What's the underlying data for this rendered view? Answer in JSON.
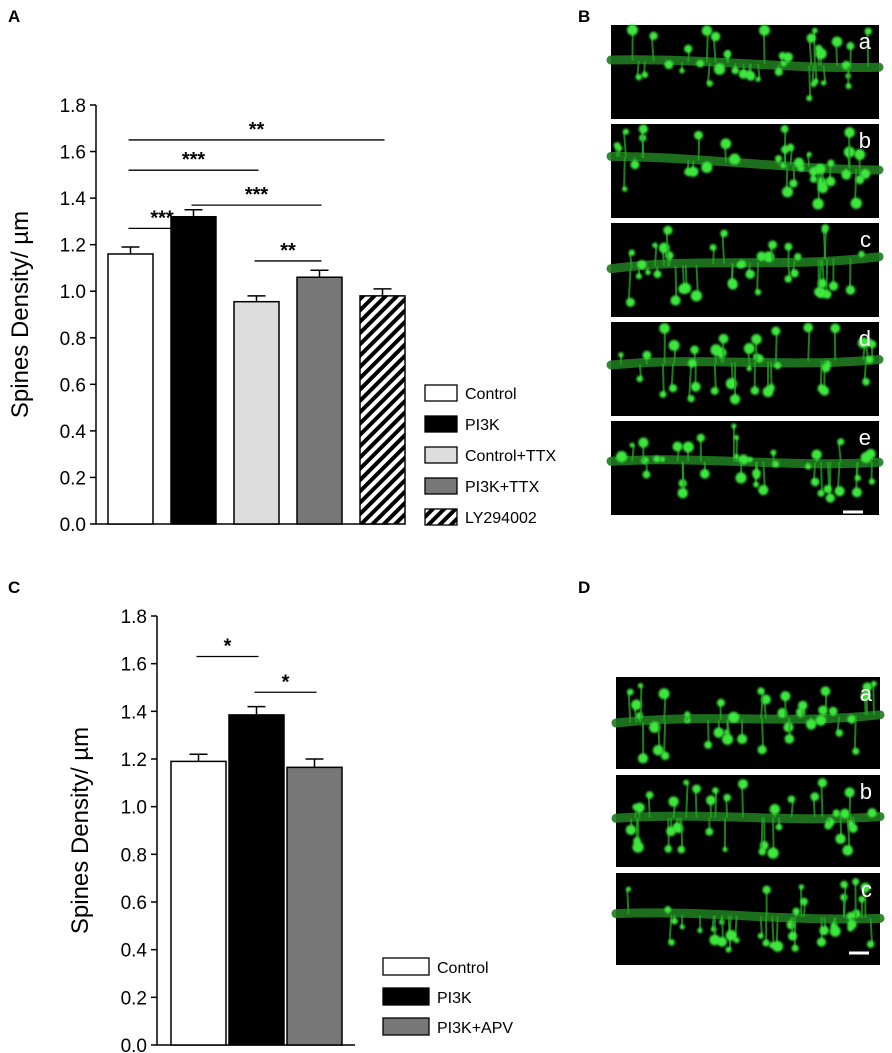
{
  "panels": [
    {
      "letter": "A"
    },
    {
      "letter": "B"
    },
    {
      "letter": "C"
    },
    {
      "letter": "D"
    }
  ],
  "chart_data": [
    {
      "panel": "A",
      "type": "bar",
      "ylabel": "Spines Density/ µm",
      "ylim": [
        0,
        1.8
      ],
      "yticks": [
        "0.0",
        "0.2",
        "0.4",
        "0.6",
        "0.8",
        "1.0",
        "1.2",
        "1.4",
        "1.6",
        "1.8"
      ],
      "categories": [
        "Control",
        "PI3K",
        "Control+TTX",
        "PI3K+TTX",
        "LY294002"
      ],
      "values": [
        1.16,
        1.32,
        0.955,
        1.06,
        0.98
      ],
      "errors": [
        0.03,
        0.03,
        0.025,
        0.03,
        0.03
      ],
      "fills": [
        "#ffffff",
        "#000000",
        "#dddddd",
        "#777777",
        "hatch"
      ],
      "legend": [
        "Control",
        "PI3K",
        "Control+TTX",
        "PI3K+TTX",
        "LY294002"
      ],
      "legend_position": "right",
      "significance": [
        {
          "from": 0,
          "to": 1,
          "y": 1.27,
          "label": "***"
        },
        {
          "from": 0,
          "to": 2,
          "y": 1.52,
          "label": "***"
        },
        {
          "from": 0,
          "to": 4,
          "y": 1.65,
          "label": "**"
        },
        {
          "from": 1,
          "to": 3,
          "y": 1.37,
          "label": "***"
        },
        {
          "from": 2,
          "to": 3,
          "y": 1.13,
          "label": "**"
        }
      ]
    },
    {
      "panel": "C",
      "type": "bar",
      "ylabel": "Spines Density/ µm",
      "ylim": [
        0,
        1.8
      ],
      "yticks": [
        "0.0",
        "0.2",
        "0.4",
        "0.6",
        "0.8",
        "1.0",
        "1.2",
        "1.4",
        "1.6",
        "1.8"
      ],
      "categories": [
        "Control",
        "PI3K",
        "PI3K+APV"
      ],
      "values": [
        1.19,
        1.385,
        1.165
      ],
      "errors": [
        0.03,
        0.035,
        0.035
      ],
      "fills": [
        "#ffffff",
        "#000000",
        "#777777"
      ],
      "legend": [
        "Control",
        "PI3K",
        "PI3K+APV"
      ],
      "legend_position": "right",
      "significance": [
        {
          "from": 0,
          "to": 1,
          "y": 1.63,
          "label": "*"
        },
        {
          "from": 1,
          "to": 2,
          "y": 1.48,
          "label": "*"
        }
      ]
    }
  ],
  "micrographs": {
    "B": [
      "a",
      "b",
      "c",
      "d",
      "e"
    ],
    "D": [
      "a",
      "b",
      "c"
    ]
  }
}
